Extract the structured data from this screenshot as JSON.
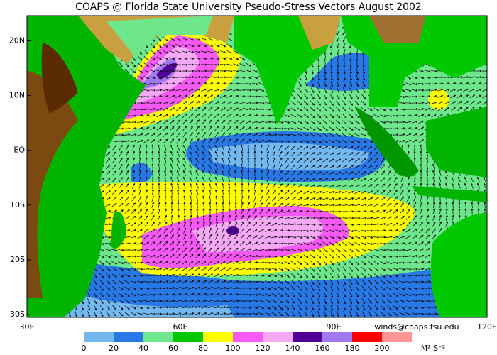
{
  "map": {
    "title": "COAPS @ Florida State University Pseudo-Stress Vectors August 2002",
    "xlim": [
      30,
      120
    ],
    "ylim": [
      -30.5,
      24.6
    ],
    "lon_ticks": [
      {
        "value": 30,
        "label": "30E"
      },
      {
        "value": 60,
        "label": "60E"
      },
      {
        "value": 90,
        "label": "90E"
      },
      {
        "value": 120,
        "label": "120E"
      }
    ],
    "lat_ticks": [
      {
        "value": 20,
        "label": "20N"
      },
      {
        "value": 10,
        "label": "10N"
      },
      {
        "value": 0,
        "label": "EQ"
      },
      {
        "value": -10,
        "label": "10S"
      },
      {
        "value": -20,
        "label": "20S"
      },
      {
        "value": -30,
        "label": "30S"
      }
    ],
    "credit": "winds@coaps.fsu.edu",
    "colorbar": {
      "ticks": [
        0,
        20,
        40,
        60,
        80,
        100,
        120,
        140,
        160,
        180,
        200
      ],
      "colors": [
        "#73b9f0",
        "#2878e6",
        "#6ee68c",
        "#00c800",
        "#ffff00",
        "#f55af5",
        "#f5aaf5",
        "#500096",
        "#a078f0",
        "#ff0000",
        "#ff9696"
      ],
      "unit": "M² S⁻²"
    }
  }
}
